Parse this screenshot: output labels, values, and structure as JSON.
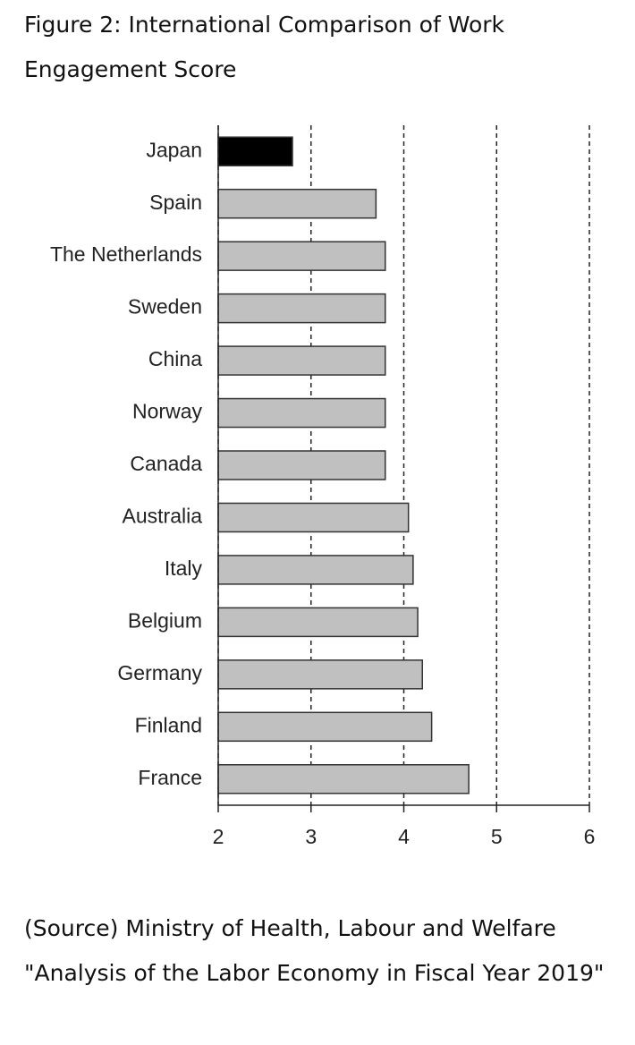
{
  "chart_data": {
    "type": "barh",
    "title": "Figure 2: International Comparison of Work Engagement Score",
    "source": "(Source) Ministry of Health, Labour and Welfare \"Analysis of the Labor Economy in Fiscal Year 2019\"",
    "categories": [
      "Japan",
      "Spain",
      "The Netherlands",
      "Sweden",
      "China",
      "Norway",
      "Canada",
      "Australia",
      "Italy",
      "Belgium",
      "Germany",
      "Finland",
      "France"
    ],
    "values": [
      2.8,
      3.7,
      3.8,
      3.8,
      3.8,
      3.8,
      3.8,
      4.05,
      4.1,
      4.15,
      4.2,
      4.3,
      4.7
    ],
    "colors": [
      "#000000",
      "#c0c0c0",
      "#c0c0c0",
      "#c0c0c0",
      "#c0c0c0",
      "#c0c0c0",
      "#c0c0c0",
      "#c0c0c0",
      "#c0c0c0",
      "#c0c0c0",
      "#c0c0c0",
      "#c0c0c0",
      "#c0c0c0"
    ],
    "xlim": [
      2,
      6
    ],
    "xticks": [
      2,
      3,
      4,
      5,
      6
    ],
    "grid": true
  }
}
